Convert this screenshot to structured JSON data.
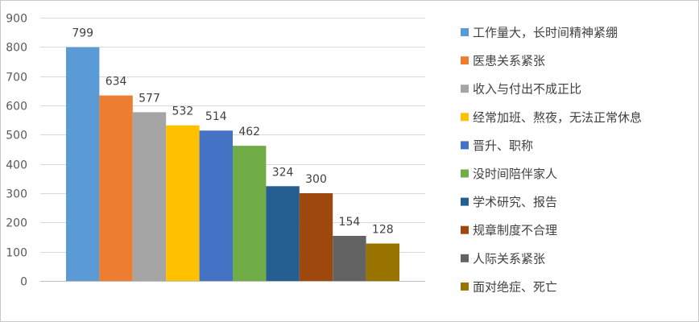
{
  "chart_data": {
    "type": "bar",
    "title": "",
    "xlabel": "",
    "ylabel": "",
    "ylim": [
      0,
      900
    ],
    "yticks": [
      0,
      100,
      200,
      300,
      400,
      500,
      600,
      700,
      800,
      900
    ],
    "grid": true,
    "legend_position": "right",
    "categories": [
      "工作量大，长时间精神紧绷",
      "医患关系紧张",
      "收入与付出不成正比",
      "经常加班、熬夜，无法正常休息",
      "晋升、职称",
      "没时间陪伴家人",
      "学术研究、报告",
      "规章制度不合理",
      "人际关系紧张",
      "面对绝症、死亡"
    ],
    "values": [
      799,
      634,
      577,
      532,
      514,
      462,
      324,
      300,
      154,
      128
    ],
    "colors": [
      "#5B9BD5",
      "#ED7D31",
      "#A5A5A5",
      "#FFC000",
      "#4472C4",
      "#70AD47",
      "#255E91",
      "#9E480E",
      "#636363",
      "#997300"
    ]
  }
}
